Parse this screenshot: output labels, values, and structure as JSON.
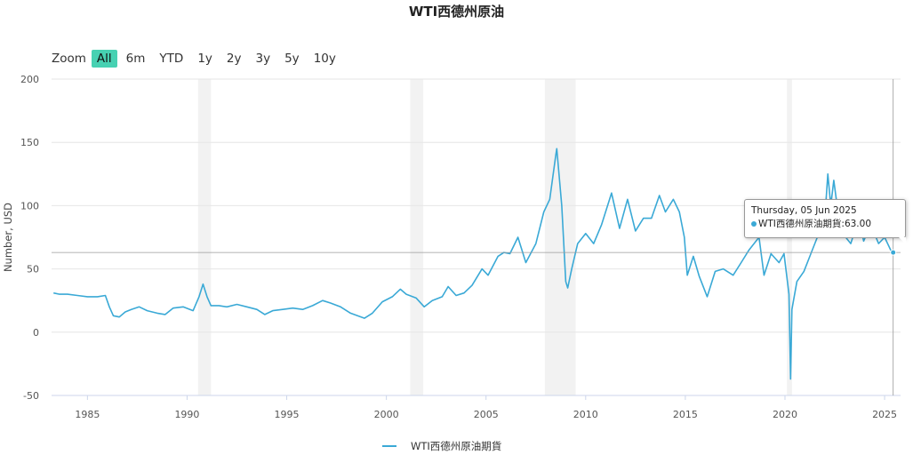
{
  "title": "WTI西德州原油",
  "zoom": {
    "label": "Zoom",
    "buttons": [
      "All",
      "6m",
      "YTD",
      "1y",
      "2y",
      "3y",
      "5y",
      "10y"
    ],
    "active": "All"
  },
  "tooltip": {
    "date": "Thursday, 05 Jun 2025",
    "series_label": "WTI西德州原油期貨:",
    "value_text": "63.00"
  },
  "legend": {
    "label": "WTI西德州原油期貨"
  },
  "colors": {
    "series": "#3aa9d6",
    "zoom_active": "#47d1b2",
    "recession_band": "#f2f2f2"
  },
  "chart_data": {
    "type": "line",
    "title": "WTI西德州原油",
    "ylabel": "Number, USD",
    "xlabel": "",
    "ylim": [
      -50,
      200
    ],
    "yticks": [
      -50,
      0,
      50,
      100,
      150,
      200
    ],
    "xlim": [
      1983.2,
      2025.8
    ],
    "xticks": [
      1985,
      1990,
      1995,
      2000,
      2005,
      2010,
      2015,
      2020,
      2025
    ],
    "grid": true,
    "legend_position": "bottom",
    "shaded_periods": [
      [
        1990.55,
        1991.2
      ],
      [
        2001.2,
        2001.85
      ],
      [
        2007.95,
        2009.5
      ],
      [
        2020.1,
        2020.35
      ]
    ],
    "crosshair": {
      "x": 2025.43,
      "y": 63.0
    },
    "series": [
      {
        "name": "WTI西德州原油期貨",
        "points": [
          [
            1983.3,
            31
          ],
          [
            1983.6,
            30
          ],
          [
            1984.0,
            30
          ],
          [
            1984.5,
            29
          ],
          [
            1985.0,
            28
          ],
          [
            1985.5,
            28
          ],
          [
            1985.9,
            29
          ],
          [
            1986.1,
            20
          ],
          [
            1986.3,
            13
          ],
          [
            1986.6,
            12
          ],
          [
            1986.9,
            16
          ],
          [
            1987.2,
            18
          ],
          [
            1987.6,
            20
          ],
          [
            1988.0,
            17
          ],
          [
            1988.5,
            15
          ],
          [
            1988.9,
            14
          ],
          [
            1989.3,
            19
          ],
          [
            1989.8,
            20
          ],
          [
            1990.3,
            17
          ],
          [
            1990.6,
            28
          ],
          [
            1990.8,
            38
          ],
          [
            1991.0,
            28
          ],
          [
            1991.2,
            21
          ],
          [
            1991.6,
            21
          ],
          [
            1992.0,
            20
          ],
          [
            1992.5,
            22
          ],
          [
            1993.0,
            20
          ],
          [
            1993.5,
            18
          ],
          [
            1993.9,
            14
          ],
          [
            1994.3,
            17
          ],
          [
            1994.8,
            18
          ],
          [
            1995.3,
            19
          ],
          [
            1995.8,
            18
          ],
          [
            1996.3,
            21
          ],
          [
            1996.8,
            25
          ],
          [
            1997.2,
            23
          ],
          [
            1997.7,
            20
          ],
          [
            1998.2,
            15
          ],
          [
            1998.9,
            11
          ],
          [
            1999.3,
            15
          ],
          [
            1999.8,
            24
          ],
          [
            2000.3,
            28
          ],
          [
            2000.7,
            34
          ],
          [
            2001.0,
            30
          ],
          [
            2001.5,
            27
          ],
          [
            2001.9,
            20
          ],
          [
            2002.3,
            25
          ],
          [
            2002.8,
            28
          ],
          [
            2003.1,
            36
          ],
          [
            2003.5,
            29
          ],
          [
            2003.9,
            31
          ],
          [
            2004.3,
            37
          ],
          [
            2004.8,
            50
          ],
          [
            2005.1,
            45
          ],
          [
            2005.6,
            60
          ],
          [
            2005.9,
            63
          ],
          [
            2006.2,
            62
          ],
          [
            2006.6,
            75
          ],
          [
            2007.0,
            55
          ],
          [
            2007.5,
            70
          ],
          [
            2007.9,
            95
          ],
          [
            2008.2,
            105
          ],
          [
            2008.5,
            140
          ],
          [
            2008.55,
            145
          ],
          [
            2008.8,
            100
          ],
          [
            2009.0,
            40
          ],
          [
            2009.1,
            35
          ],
          [
            2009.3,
            50
          ],
          [
            2009.6,
            70
          ],
          [
            2010.0,
            78
          ],
          [
            2010.4,
            70
          ],
          [
            2010.8,
            85
          ],
          [
            2011.3,
            110
          ],
          [
            2011.7,
            82
          ],
          [
            2012.1,
            105
          ],
          [
            2012.5,
            80
          ],
          [
            2012.9,
            90
          ],
          [
            2013.3,
            90
          ],
          [
            2013.7,
            108
          ],
          [
            2014.0,
            95
          ],
          [
            2014.4,
            105
          ],
          [
            2014.7,
            95
          ],
          [
            2014.95,
            75
          ],
          [
            2015.1,
            45
          ],
          [
            2015.4,
            60
          ],
          [
            2015.7,
            44
          ],
          [
            2016.1,
            28
          ],
          [
            2016.5,
            48
          ],
          [
            2016.9,
            50
          ],
          [
            2017.4,
            45
          ],
          [
            2017.8,
            55
          ],
          [
            2018.2,
            65
          ],
          [
            2018.7,
            75
          ],
          [
            2018.95,
            45
          ],
          [
            2019.3,
            62
          ],
          [
            2019.7,
            55
          ],
          [
            2019.95,
            62
          ],
          [
            2020.2,
            30
          ],
          [
            2020.28,
            -37
          ],
          [
            2020.35,
            18
          ],
          [
            2020.6,
            40
          ],
          [
            2020.95,
            48
          ],
          [
            2021.3,
            62
          ],
          [
            2021.8,
            82
          ],
          [
            2022.0,
            90
          ],
          [
            2022.15,
            125
          ],
          [
            2022.3,
            100
          ],
          [
            2022.45,
            120
          ],
          [
            2022.7,
            90
          ],
          [
            2022.95,
            77
          ],
          [
            2023.3,
            70
          ],
          [
            2023.7,
            90
          ],
          [
            2023.95,
            72
          ],
          [
            2024.3,
            85
          ],
          [
            2024.7,
            70
          ],
          [
            2025.0,
            75
          ],
          [
            2025.3,
            65
          ],
          [
            2025.43,
            63
          ]
        ]
      }
    ]
  }
}
